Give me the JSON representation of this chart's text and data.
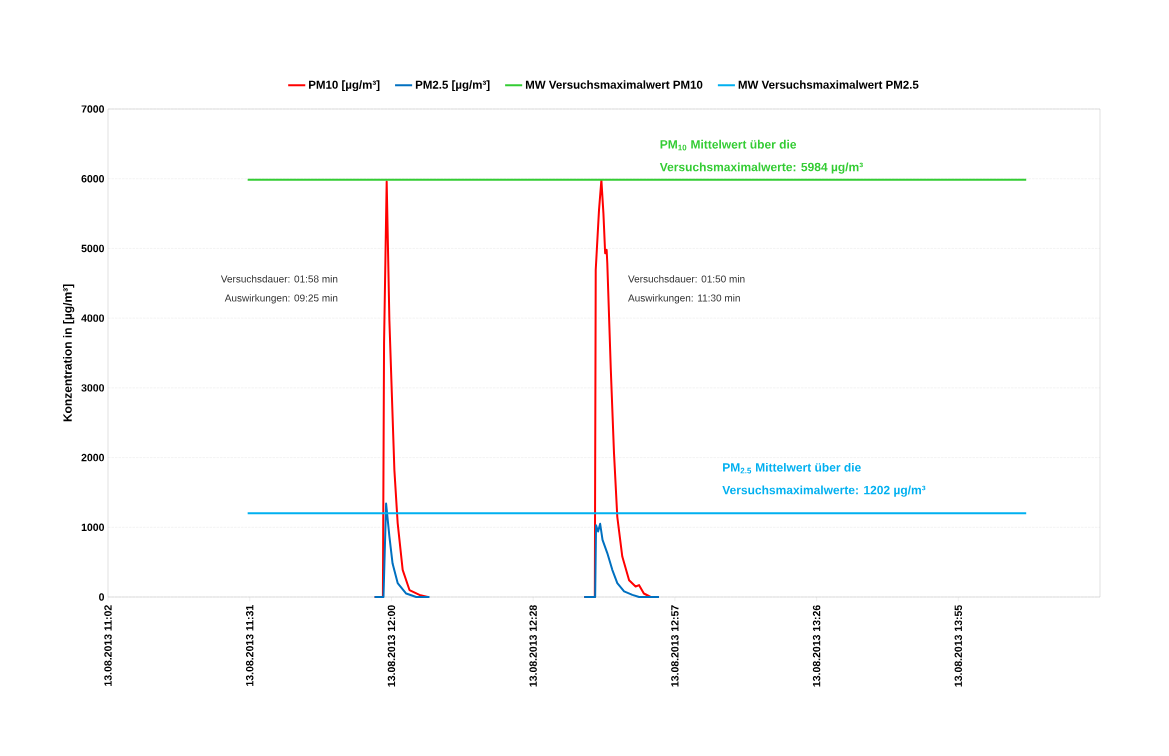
{
  "chart_data": {
    "type": "line",
    "ylabel": "Konzentration in [µg/m³]",
    "xlim": [
      "2013-08-13T11:02:24",
      "2013-08-13T14:24:00"
    ],
    "ylim": [
      0,
      7000
    ],
    "xticks": [
      {
        "value": "2013-08-13T11:02:24",
        "label": "13.08.2013 11:02"
      },
      {
        "value": "2013-08-13T11:31:12",
        "label": "13.08.2013 11:31"
      },
      {
        "value": "2013-08-13T12:00:00",
        "label": "13.08.2013 12:00"
      },
      {
        "value": "2013-08-13T12:28:48",
        "label": "13.08.2013 12:28"
      },
      {
        "value": "2013-08-13T12:57:36",
        "label": "13.08.2013 12:57"
      },
      {
        "value": "2013-08-13T13:26:24",
        "label": "13.08.2013 13:26"
      },
      {
        "value": "2013-08-13T13:55:12",
        "label": "13.08.2013 13:55"
      }
    ],
    "yticks": [
      0,
      1000,
      2000,
      3000,
      4000,
      5000,
      6000,
      7000
    ],
    "grid": "y",
    "legend": "top",
    "marker": "none",
    "line_style": "solid",
    "series": [
      {
        "name": "PM10 [µg/m³]",
        "color": "#ff0000",
        "x": [
          "2013-08-13T11:56:35",
          "2013-08-13T11:58:16",
          "2013-08-13T11:58:30",
          "2013-08-13T11:59:02",
          "2013-08-13T11:59:35",
          "2013-08-13T12:00:36",
          "2013-08-13T12:01:16",
          "2013-08-13T12:02:17",
          "2013-08-13T12:03:40",
          "2013-08-13T12:05:42",
          "2013-08-13T12:07:23",
          "2013-08-13T12:24:00",
          "2013-08-13T12:39:11",
          "2013-08-13T12:41:20",
          "2013-08-13T12:41:31",
          "2013-08-13T12:42:11",
          "2013-08-13T12:42:40",
          "2013-08-13T12:43:05",
          "2013-08-13T12:43:26",
          "2013-08-13T12:43:44",
          "2013-08-13T12:43:52",
          "2013-08-13T12:44:35",
          "2013-08-13T12:45:14",
          "2013-08-13T12:45:54",
          "2013-08-13T12:46:55",
          "2013-08-13T12:48:18",
          "2013-08-13T12:49:37",
          "2013-08-13T12:50:20",
          "2013-08-13T12:51:18",
          "2013-08-13T12:52:41",
          "2013-08-13T12:54:22"
        ],
        "values": [
          0,
          0,
          3640,
          5960,
          3970,
          1820,
          1060,
          390,
          100,
          30,
          0,
          null,
          0,
          0,
          4690,
          5550,
          5980,
          5500,
          4930,
          4980,
          4790,
          3260,
          2060,
          1150,
          580,
          240,
          150,
          170,
          50,
          0,
          0
        ]
      },
      {
        "name": "PM2.5 [µg/m³]",
        "color": "#0070c0",
        "x": [
          "2013-08-13T11:56:35",
          "2013-08-13T11:58:23",
          "2013-08-13T11:58:55",
          "2013-08-13T11:59:35",
          "2013-08-13T12:00:14",
          "2013-08-13T12:01:16",
          "2013-08-13T12:03:00",
          "2013-08-13T12:05:02",
          "2013-08-13T12:07:44",
          "2013-08-13T12:24:00",
          "2013-08-13T12:39:11",
          "2013-08-13T12:41:24",
          "2013-08-13T12:41:35",
          "2013-08-13T12:42:00",
          "2013-08-13T12:42:25",
          "2013-08-13T12:42:54",
          "2013-08-13T12:43:52",
          "2013-08-13T12:44:53",
          "2013-08-13T12:45:54",
          "2013-08-13T12:47:17",
          "2013-08-13T12:48:58",
          "2013-08-13T12:50:20",
          "2013-08-13T12:54:22"
        ],
        "values": [
          0,
          0,
          1340,
          870,
          480,
          200,
          50,
          0,
          0,
          null,
          0,
          0,
          1030,
          940,
          1050,
          820,
          630,
          390,
          200,
          80,
          30,
          0,
          0
        ]
      },
      {
        "name": "MW Versuchsmaximalwert PM10",
        "color": "#33cc33",
        "x": [
          "2013-08-13T11:30:47",
          "2013-08-13T14:09:00"
        ],
        "values": [
          5984,
          5984
        ]
      },
      {
        "name": "MW Versuchsmaximalwert PM2.5",
        "color": "#00b0f0",
        "x": [
          "2013-08-13T11:30:47",
          "2013-08-13T14:09:00"
        ],
        "values": [
          1202,
          1202
        ]
      }
    ],
    "annotations": [
      "PM$_{10}$ Mittelwert über die",
      "Versuchsmaximalwerte: 5984 µg/m³",
      "PM$_{2.5}$ Mittelwert über die",
      "Versuchsmaximalwerte: 1202 µg/m³",
      "Versuchsdauer: 01:58 min",
      "Auswirkungen: 09:25 min",
      "Versuchsdauer: 01:50 min",
      "Auswirkungen: 11:30 min"
    ]
  }
}
